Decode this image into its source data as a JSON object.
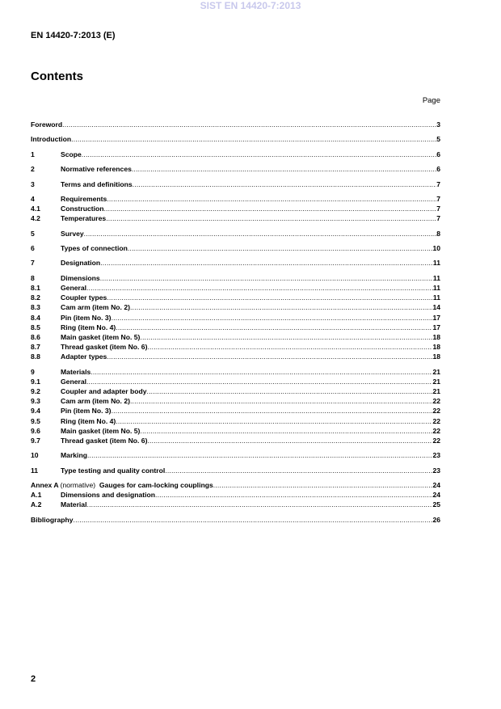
{
  "watermark": "SIST EN 14420-7:2013",
  "header": "EN 14420-7:2013 (E)",
  "title": "Contents",
  "page_label": "Page",
  "groups": [
    [
      {
        "num": "",
        "label": "Foreword",
        "page": "3"
      }
    ],
    [
      {
        "num": "",
        "label": "Introduction",
        "page": "5"
      }
    ],
    [
      {
        "num": "1",
        "label": "Scope",
        "page": "6"
      }
    ],
    [
      {
        "num": "2",
        "label": "Normative references",
        "page": "6"
      }
    ],
    [
      {
        "num": "3",
        "label": "Terms and definitions",
        "page": "7"
      }
    ],
    [
      {
        "num": "4",
        "label": "Requirements",
        "page": "7"
      },
      {
        "num": "4.1",
        "label": "Construction",
        "page": "7"
      },
      {
        "num": "4.2",
        "label": "Temperatures",
        "page": "7"
      }
    ],
    [
      {
        "num": "5",
        "label": "Survey",
        "page": "8"
      }
    ],
    [
      {
        "num": "6",
        "label": "Types of connection",
        "page": "10"
      }
    ],
    [
      {
        "num": "7",
        "label": "Designation",
        "page": "11"
      }
    ],
    [
      {
        "num": "8",
        "label": "Dimensions",
        "page": "11"
      },
      {
        "num": "8.1",
        "label": "General",
        "page": "11"
      },
      {
        "num": "8.2",
        "label": "Coupler types",
        "page": "11"
      },
      {
        "num": "8.3",
        "label": "Cam arm (item No. 2)",
        "page": "14"
      },
      {
        "num": "8.4",
        "label": "Pin (item No. 3)",
        "page": "17"
      },
      {
        "num": "8.5",
        "label": "Ring (item No. 4)",
        "page": "17"
      },
      {
        "num": "8.6",
        "label": "Main gasket (item No. 5)",
        "page": "18"
      },
      {
        "num": "8.7",
        "label": "Thread gasket (item No. 6)",
        "page": "18"
      },
      {
        "num": "8.8",
        "label": "Adapter types",
        "page": "18"
      }
    ],
    [
      {
        "num": "9",
        "label": "Materials",
        "page": "21"
      },
      {
        "num": "9.1",
        "label": "General",
        "page": "21"
      },
      {
        "num": "9.2",
        "label": "Coupler and adapter body",
        "page": "21"
      },
      {
        "num": "9.3",
        "label": "Cam arm (item No. 2)",
        "page": "22"
      },
      {
        "num": "9.4",
        "label": "Pin (item No. 3)",
        "page": "22"
      },
      {
        "num": "9.5",
        "label": "Ring (item No. 4)",
        "page": "22"
      },
      {
        "num": "9.6",
        "label": "Main gasket (item No. 5)",
        "page": "22"
      },
      {
        "num": "9.7",
        "label": "Thread gasket (item No. 6)",
        "page": "22"
      }
    ],
    [
      {
        "num": "10",
        "label": "Marking",
        "page": "23"
      }
    ],
    [
      {
        "num": "11",
        "label": "Type testing and quality control",
        "page": "23"
      }
    ],
    [
      {
        "num": "",
        "label": "Annex A",
        "note": "(normative)",
        "label2": "Gauges for cam-locking couplings",
        "page": "24"
      },
      {
        "num": "A.1",
        "label": "Dimensions and designation",
        "page": "24"
      },
      {
        "num": "A.2",
        "label": "Material",
        "page": "25"
      }
    ],
    [
      {
        "num": "",
        "label": "Bibliography",
        "page": "26"
      }
    ]
  ],
  "page_number": "2"
}
